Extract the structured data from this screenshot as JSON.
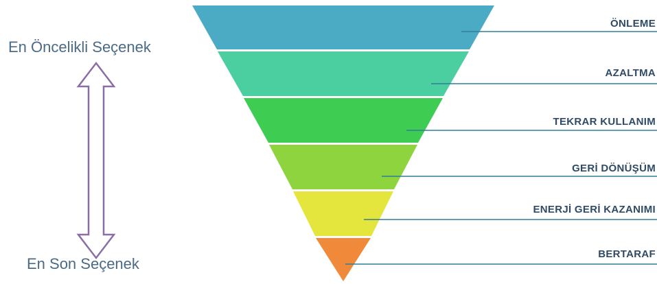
{
  "priority_scale": {
    "top_label": "En Öncelikli Seçenek",
    "bottom_label": "En Son Seçenek"
  },
  "hierarchy": {
    "tiers": [
      {
        "label": "ÖNLEME",
        "color": "#4babc4"
      },
      {
        "label": "AZALTMA",
        "color": "#4ccfa0"
      },
      {
        "label": "TEKRAR KULLANIM",
        "color": "#3ecc52"
      },
      {
        "label": "GERİ DÖNÜŞÜM",
        "color": "#8ed43f"
      },
      {
        "label": "ENERJİ GERİ KAZANIMI",
        "color": "#e4e63e"
      },
      {
        "label": "BERTARAF",
        "color": "#f08a3a"
      }
    ]
  },
  "colors": {
    "arrow_outline": "#8a6fa5",
    "connector_line": "#2f7f96",
    "label_text": "#2f4a64",
    "side_text": "#4a6a86"
  }
}
